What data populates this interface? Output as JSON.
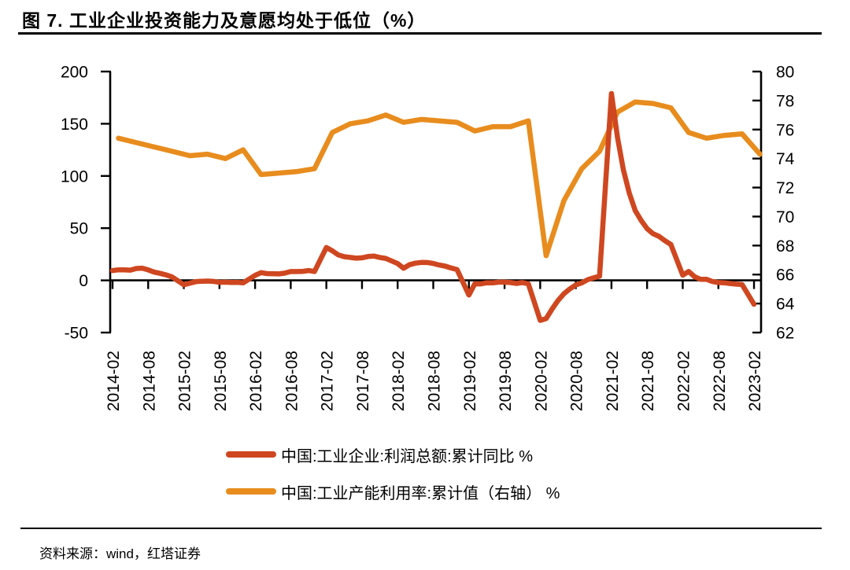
{
  "title": "图 7. 工业企业投资能力及意愿均处于低位（%）",
  "source": "资料来源：wind，红塔证券",
  "legend": [
    {
      "label": "中国:工业企业:利润总额:累计同比 %",
      "color": "#cf4720"
    },
    {
      "label": "中国:工业产能利用率:累计值（右轴） %",
      "color": "#e88c1e"
    }
  ],
  "chart_data": {
    "type": "line",
    "title": "工业企业投资能力及意愿均处于低位（%）",
    "grid": false,
    "legend_position": "bottom",
    "x_tick_labels": [
      "2014-02",
      "2014-08",
      "2015-02",
      "2015-08",
      "2016-02",
      "2016-08",
      "2017-02",
      "2017-08",
      "2018-02",
      "2018-08",
      "2019-02",
      "2019-08",
      "2020-02",
      "2020-08",
      "2021-02",
      "2021-08",
      "2022-02",
      "2022-08",
      "2023-02"
    ],
    "left_axis": {
      "min": -50,
      "max": 200,
      "ticks": [
        200,
        150,
        100,
        50,
        0,
        -50
      ]
    },
    "right_axis": {
      "min": 62,
      "max": 80,
      "ticks": [
        80,
        78,
        76,
        74,
        72,
        70,
        68,
        66,
        64,
        62
      ]
    },
    "axis_color": "#000000",
    "series": [
      {
        "id": "profit-yoy-line",
        "name": "中国:工业企业:利润总额:累计同比 %",
        "axis": "left",
        "color": "#cf4720",
        "points": [
          [
            "2014-02",
            9.4
          ],
          [
            "2014-03",
            10.1
          ],
          [
            "2014-04",
            10.0
          ],
          [
            "2014-05",
            9.8
          ],
          [
            "2014-06",
            11.4
          ],
          [
            "2014-07",
            11.7
          ],
          [
            "2014-08",
            10.0
          ],
          [
            "2014-09",
            7.9
          ],
          [
            "2014-10",
            6.7
          ],
          [
            "2014-11",
            5.3
          ],
          [
            "2014-12",
            3.3
          ],
          [
            "2015-02",
            -4.2
          ],
          [
            "2015-03",
            -2.7
          ],
          [
            "2015-04",
            -1.3
          ],
          [
            "2015-05",
            -0.8
          ],
          [
            "2015-06",
            -0.7
          ],
          [
            "2015-07",
            -1.0
          ],
          [
            "2015-08",
            -1.9
          ],
          [
            "2015-09",
            -1.7
          ],
          [
            "2015-10",
            -2.0
          ],
          [
            "2015-11",
            -1.9
          ],
          [
            "2015-12",
            -2.3
          ],
          [
            "2016-02",
            4.8
          ],
          [
            "2016-03",
            7.4
          ],
          [
            "2016-04",
            6.5
          ],
          [
            "2016-05",
            6.4
          ],
          [
            "2016-06",
            6.2
          ],
          [
            "2016-07",
            6.9
          ],
          [
            "2016-08",
            8.4
          ],
          [
            "2016-09",
            8.4
          ],
          [
            "2016-10",
            8.6
          ],
          [
            "2016-11",
            9.4
          ],
          [
            "2016-12",
            8.5
          ],
          [
            "2017-02",
            31.5
          ],
          [
            "2017-03",
            28.3
          ],
          [
            "2017-04",
            24.4
          ],
          [
            "2017-05",
            22.7
          ],
          [
            "2017-06",
            22.0
          ],
          [
            "2017-07",
            21.2
          ],
          [
            "2017-08",
            21.6
          ],
          [
            "2017-09",
            22.8
          ],
          [
            "2017-10",
            23.3
          ],
          [
            "2017-11",
            21.9
          ],
          [
            "2017-12",
            21.0
          ],
          [
            "2018-02",
            16.1
          ],
          [
            "2018-03",
            11.6
          ],
          [
            "2018-04",
            15.0
          ],
          [
            "2018-05",
            16.5
          ],
          [
            "2018-06",
            17.2
          ],
          [
            "2018-07",
            17.1
          ],
          [
            "2018-08",
            16.2
          ],
          [
            "2018-09",
            14.7
          ],
          [
            "2018-10",
            13.6
          ],
          [
            "2018-11",
            11.8
          ],
          [
            "2018-12",
            10.3
          ],
          [
            "2019-02",
            -14.0
          ],
          [
            "2019-03",
            -3.3
          ],
          [
            "2019-04",
            -3.4
          ],
          [
            "2019-05",
            -2.3
          ],
          [
            "2019-06",
            -2.4
          ],
          [
            "2019-07",
            -1.7
          ],
          [
            "2019-08",
            -1.7
          ],
          [
            "2019-09",
            -2.1
          ],
          [
            "2019-10",
            -2.9
          ],
          [
            "2019-11",
            -2.1
          ],
          [
            "2019-12",
            -3.3
          ],
          [
            "2020-02",
            -38.3
          ],
          [
            "2020-03",
            -36.7
          ],
          [
            "2020-04",
            -27.4
          ],
          [
            "2020-05",
            -19.3
          ],
          [
            "2020-06",
            -12.8
          ],
          [
            "2020-07",
            -8.1
          ],
          [
            "2020-08",
            -4.4
          ],
          [
            "2020-09",
            -2.4
          ],
          [
            "2020-10",
            0.7
          ],
          [
            "2020-11",
            2.4
          ],
          [
            "2020-12",
            4.1
          ],
          [
            "2021-02",
            178.9
          ],
          [
            "2021-03",
            137.3
          ],
          [
            "2021-04",
            106.1
          ],
          [
            "2021-05",
            83.4
          ],
          [
            "2021-06",
            66.9
          ],
          [
            "2021-07",
            57.3
          ],
          [
            "2021-08",
            49.5
          ],
          [
            "2021-09",
            44.7
          ],
          [
            "2021-10",
            42.2
          ],
          [
            "2021-11",
            38.0
          ],
          [
            "2021-12",
            34.3
          ],
          [
            "2022-02",
            5.0
          ],
          [
            "2022-03",
            8.5
          ],
          [
            "2022-04",
            3.5
          ],
          [
            "2022-05",
            1.0
          ],
          [
            "2022-06",
            1.0
          ],
          [
            "2022-07",
            -1.1
          ],
          [
            "2022-08",
            -2.1
          ],
          [
            "2022-09",
            -2.3
          ],
          [
            "2022-10",
            -3.0
          ],
          [
            "2022-11",
            -3.6
          ],
          [
            "2022-12",
            -4.0
          ],
          [
            "2023-02",
            -22.9
          ]
        ]
      },
      {
        "id": "capacity-utilization-line",
        "name": "中国:工业产能利用率:累计值（右轴） %",
        "axis": "right",
        "color": "#e88c1e",
        "points": [
          [
            "2014-03",
            75.4
          ],
          [
            "2014-06",
            75.1
          ],
          [
            "2014-09",
            74.8
          ],
          [
            "2014-12",
            74.5
          ],
          [
            "2015-03",
            74.2
          ],
          [
            "2015-06",
            74.3
          ],
          [
            "2015-09",
            74.0
          ],
          [
            "2015-12",
            74.6
          ],
          [
            "2016-03",
            72.9
          ],
          [
            "2016-06",
            73.0
          ],
          [
            "2016-09",
            73.1
          ],
          [
            "2016-12",
            73.3
          ],
          [
            "2017-03",
            75.8
          ],
          [
            "2017-06",
            76.4
          ],
          [
            "2017-09",
            76.6
          ],
          [
            "2017-12",
            77.0
          ],
          [
            "2018-03",
            76.5
          ],
          [
            "2018-06",
            76.7
          ],
          [
            "2018-09",
            76.6
          ],
          [
            "2018-12",
            76.5
          ],
          [
            "2019-03",
            75.9
          ],
          [
            "2019-06",
            76.2
          ],
          [
            "2019-09",
            76.2
          ],
          [
            "2019-12",
            76.6
          ],
          [
            "2020-03",
            67.3
          ],
          [
            "2020-06",
            71.1
          ],
          [
            "2020-09",
            73.3
          ],
          [
            "2020-12",
            74.5
          ],
          [
            "2021-03",
            77.2
          ],
          [
            "2021-06",
            77.9
          ],
          [
            "2021-09",
            77.8
          ],
          [
            "2021-12",
            77.5
          ],
          [
            "2022-03",
            75.8
          ],
          [
            "2022-06",
            75.4
          ],
          [
            "2022-09",
            75.6
          ],
          [
            "2022-12",
            75.7
          ],
          [
            "2023-03",
            74.3
          ]
        ]
      }
    ]
  }
}
